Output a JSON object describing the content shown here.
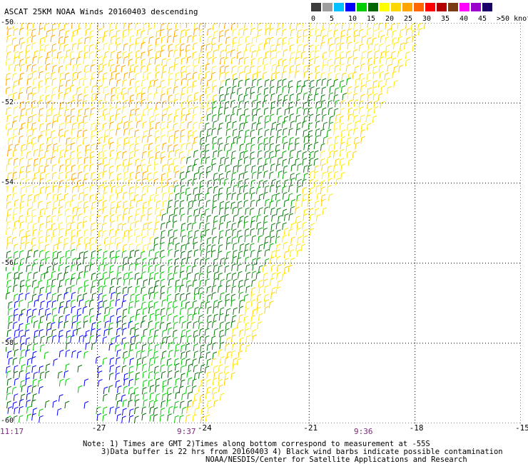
{
  "title": "ASCAT 25KM NOAA Winds 20160403 descending",
  "legend": {
    "labels": [
      "0",
      "5",
      "10",
      "15",
      "20",
      "25",
      "30",
      "35",
      "40",
      "45",
      ">50 knots"
    ],
    "colors": [
      "#3c3c3c",
      "#9e9e9e",
      "#00bfff",
      "#0000ff",
      "#00cc00",
      "#006600",
      "#ffff00",
      "#ffd700",
      "#ffa500",
      "#ff6600",
      "#ff0000",
      "#b20000",
      "#7a3c14",
      "#ff00ff",
      "#9900cc",
      "#1a0066"
    ]
  },
  "axes": {
    "x_ticks": [
      "-27",
      "-24",
      "-21",
      "-18",
      "-15"
    ],
    "y_ticks": [
      "-50",
      "-52",
      "-54",
      "-56",
      "-58",
      "-60"
    ],
    "x_range": [
      -29.6,
      -15
    ],
    "y_range": [
      -60,
      -50
    ]
  },
  "times": [
    "11:17",
    "9:37",
    "9:36"
  ],
  "notes": {
    "line1": "Note: 1) Times are GMT 2)Times along bottom correspond to measurement at -55S",
    "line2": "3)Data buffer is 22 hrs from 20160403 4) Black wind barbs indicate possible contamination",
    "line3": "NOAA/NESDIS/Center for Satellite Applications and Research"
  }
}
